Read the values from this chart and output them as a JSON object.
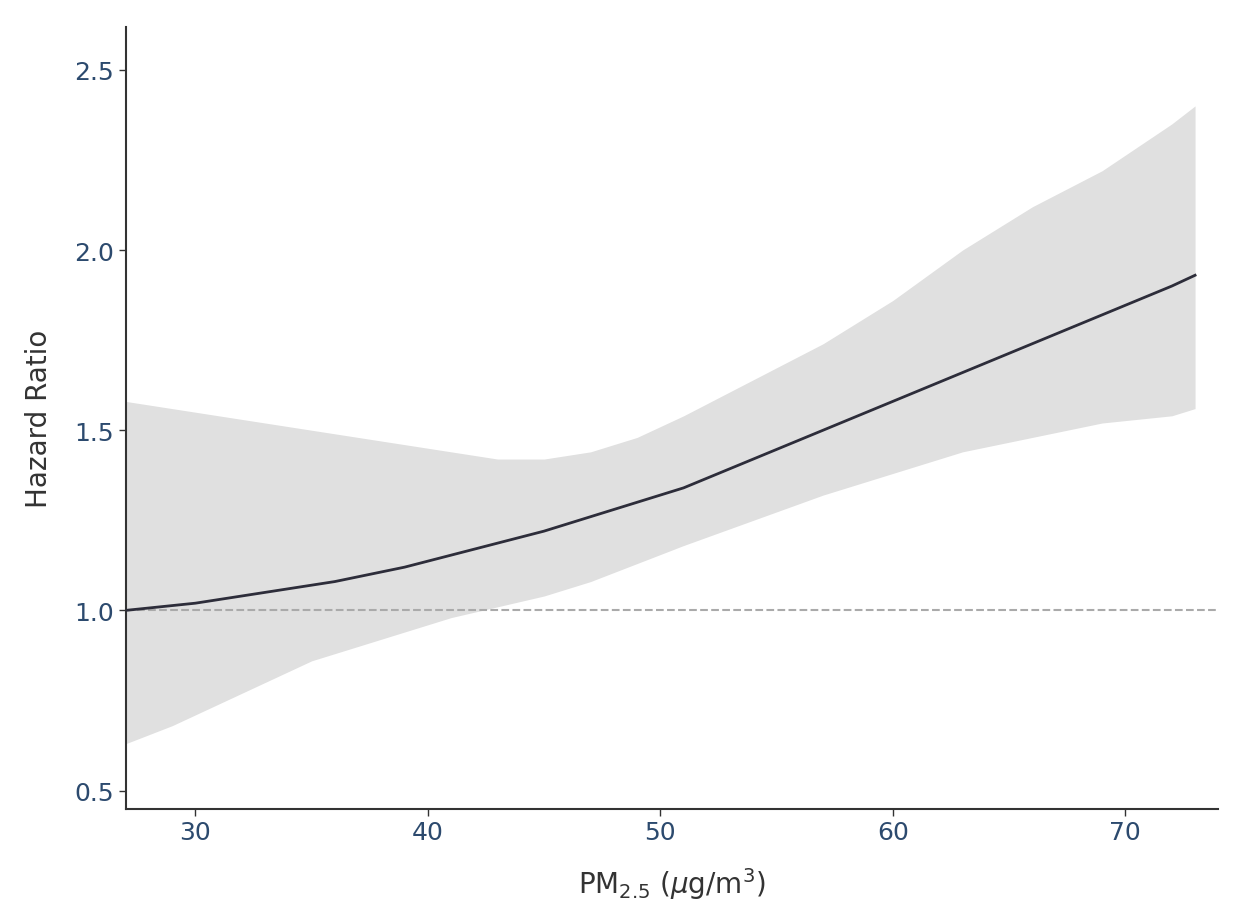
{
  "x_min": 27,
  "x_max": 74,
  "y_min": 0.45,
  "y_max": 2.62,
  "x_ticks": [
    30,
    40,
    50,
    60,
    70
  ],
  "y_ticks": [
    0.5,
    1.0,
    1.5,
    2.0,
    2.5
  ],
  "ylabel": "Hazard Ratio",
  "reference_line_y": 1.0,
  "line_color": "#2d2d3a",
  "ci_color": "#e0e0e0",
  "background_color": "#ffffff",
  "tick_label_color": "#2c4a6e",
  "axis_color": "#333333",
  "dashed_line_color": "#aaaaaa",
  "main_line": {
    "x": [
      27,
      30,
      33,
      36,
      39,
      42,
      45,
      48,
      51,
      54,
      57,
      60,
      63,
      66,
      69,
      72,
      73
    ],
    "y": [
      1.0,
      1.02,
      1.05,
      1.08,
      1.12,
      1.17,
      1.22,
      1.28,
      1.34,
      1.42,
      1.5,
      1.58,
      1.66,
      1.74,
      1.82,
      1.9,
      1.93
    ]
  },
  "ci_upper": {
    "x": [
      27,
      29,
      31,
      33,
      35,
      37,
      39,
      41,
      43,
      45,
      47,
      49,
      51,
      54,
      57,
      60,
      63,
      66,
      69,
      72,
      73
    ],
    "y": [
      1.58,
      1.56,
      1.54,
      1.52,
      1.5,
      1.48,
      1.46,
      1.44,
      1.42,
      1.42,
      1.44,
      1.48,
      1.54,
      1.64,
      1.74,
      1.86,
      2.0,
      2.12,
      2.22,
      2.35,
      2.4
    ]
  },
  "ci_lower": {
    "x": [
      27,
      29,
      31,
      33,
      35,
      37,
      39,
      41,
      43,
      45,
      47,
      49,
      51,
      54,
      57,
      60,
      63,
      66,
      69,
      72,
      73
    ],
    "y": [
      0.63,
      0.68,
      0.74,
      0.8,
      0.86,
      0.9,
      0.94,
      0.98,
      1.01,
      1.04,
      1.08,
      1.13,
      1.18,
      1.25,
      1.32,
      1.38,
      1.44,
      1.48,
      1.52,
      1.54,
      1.56
    ]
  }
}
